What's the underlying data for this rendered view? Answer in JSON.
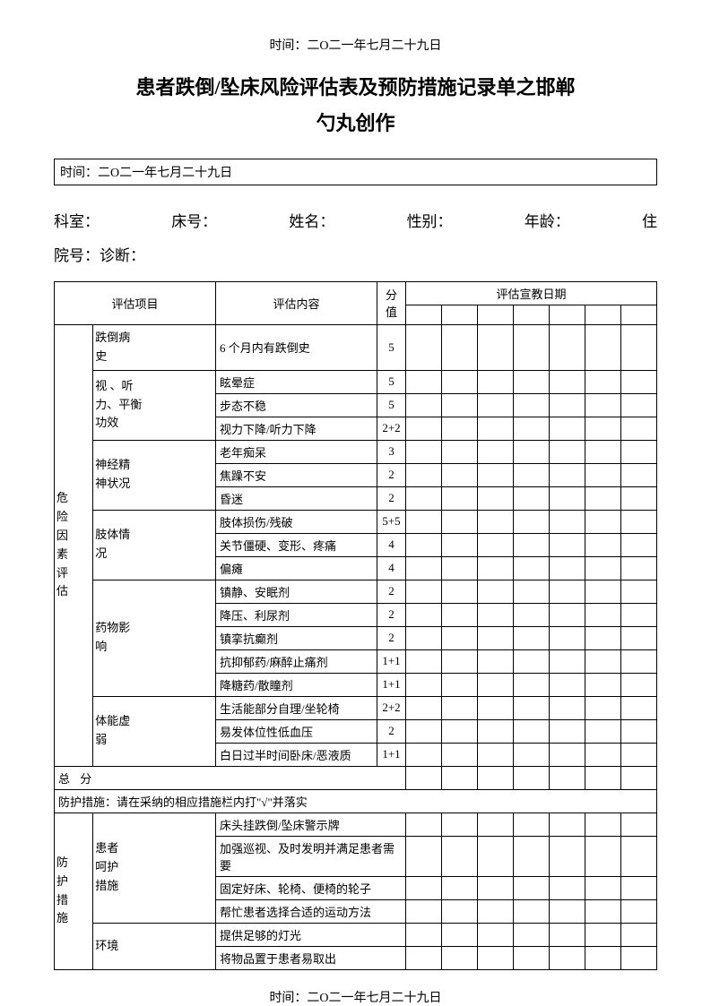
{
  "header_time": "时间：二O二一年七月二十九日",
  "title_line1": "患者跌倒/坠床风险评估表及预防措施记录单之邯郸",
  "title_line2": "勺丸创作",
  "time_box": "时间：二O二一年七月二十九日",
  "patient": {
    "dept_label": "科室：",
    "bed_label": "床号：",
    "name_label": "姓名：",
    "sex_label": "性别：",
    "age_label": "年龄：",
    "adm_label": "住",
    "adm_label2": "院号：诊断："
  },
  "table_headers": {
    "item": "评估项目",
    "content": "评估内容",
    "score": "分值",
    "date": "评估宣教日期"
  },
  "risk_section": {
    "label": "危险因素评估",
    "groups": [
      {
        "label": "跌倒病史",
        "rows": [
          {
            "content": "6 个月内有跌倒史",
            "score": "5"
          }
        ]
      },
      {
        "label": "视、听力、平衡功效",
        "rows": [
          {
            "content": "眩晕症",
            "score": "5"
          },
          {
            "content": "步态不稳",
            "score": "5"
          },
          {
            "content": "视力下降/听力下降",
            "score": "2+2"
          }
        ]
      },
      {
        "label": "神经精神状况",
        "rows": [
          {
            "content": "老年痴呆",
            "score": "3"
          },
          {
            "content": "焦躁不安",
            "score": "2"
          },
          {
            "content": "昏迷",
            "score": "2"
          }
        ]
      },
      {
        "label": "肢体情况",
        "rows": [
          {
            "content": "肢体损伤/残破",
            "score": "5+5"
          },
          {
            "content": "关节僵硬、变形、疼痛",
            "score": "4"
          },
          {
            "content": "偏瘫",
            "score": "4"
          }
        ]
      },
      {
        "label": "药物影响",
        "rows": [
          {
            "content": "镇静、安眠剂",
            "score": "2"
          },
          {
            "content": "降压、利尿剂",
            "score": "2"
          },
          {
            "content": "镇挛抗癫剂",
            "score": "2"
          },
          {
            "content": "抗抑郁药/麻醉止痛剂",
            "score": "1+1"
          },
          {
            "content": "降糖药/散瞳剂",
            "score": "1+1"
          }
        ]
      },
      {
        "label": "体能虚弱",
        "rows": [
          {
            "content": "生活能部分自理/坐轮椅",
            "score": "2+2"
          },
          {
            "content": "易发体位性低血压",
            "score": "2"
          },
          {
            "content": "白日过半时间卧床/恶液质",
            "score": "1+1"
          }
        ]
      }
    ]
  },
  "total_label": "总  分",
  "instruction": "防护措施：请在采纳的相应措施栏内打\"√\"并落实",
  "protect_section": {
    "label": "防护措施",
    "groups": [
      {
        "label": "患者呵护措施",
        "rows": [
          {
            "content": "床头挂跌倒/坠床警示牌"
          },
          {
            "content": "加强巡视、及时发明并满足患者需要"
          },
          {
            "content": "固定好床、轮椅、便椅的轮子"
          },
          {
            "content": "帮忙患者选择合适的运动方法"
          }
        ]
      },
      {
        "label": "环境",
        "rows": [
          {
            "content": "提供足够的灯光"
          },
          {
            "content": "将物品置于患者易取出"
          }
        ]
      }
    ]
  },
  "footer_time": "时间：二O二一年七月二十九日",
  "colors": {
    "text": "#000000",
    "background": "#ffffff",
    "border": "#000000"
  }
}
